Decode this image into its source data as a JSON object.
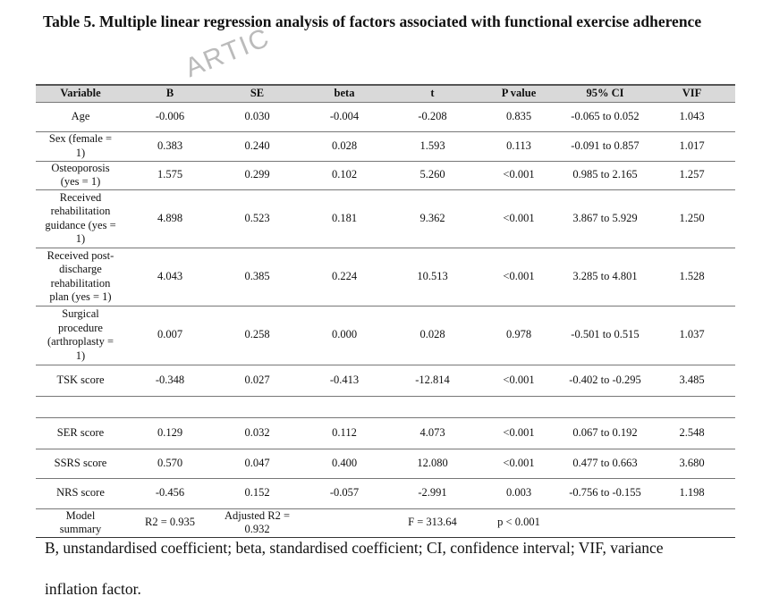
{
  "title": "Table 5. Multiple linear regression analysis of factors associated with functional exercise adherence",
  "watermark": "ARTIC",
  "table": {
    "header": [
      "Variable",
      "B",
      "SE",
      "beta",
      "t",
      "P value",
      "95% CI",
      "VIF"
    ],
    "rows": [
      [
        "Age",
        "-0.006",
        "0.030",
        "-0.004",
        "-0.208",
        "0.835",
        "-0.065 to 0.052",
        "1.043"
      ],
      [
        "Sex (female = 1)",
        "0.383",
        "0.240",
        "0.028",
        "1.593",
        "0.113",
        "-0.091 to 0.857",
        "1.017"
      ],
      [
        "Osteoporosis (yes = 1)",
        "1.575",
        "0.299",
        "0.102",
        "5.260",
        "<0.001",
        "0.985 to 2.165",
        "1.257"
      ],
      [
        "Received rehabilitation guidance (yes = 1)",
        "4.898",
        "0.523",
        "0.181",
        "9.362",
        "<0.001",
        "3.867 to 5.929",
        "1.250"
      ],
      [
        "Received post-discharge rehabilitation plan (yes = 1)",
        "4.043",
        "0.385",
        "0.224",
        "10.513",
        "<0.001",
        "3.285 to 4.801",
        "1.528"
      ],
      [
        "Surgical procedure (arthroplasty = 1)",
        "0.007",
        "0.258",
        "0.000",
        "0.028",
        "0.978",
        "-0.501 to 0.515",
        "1.037"
      ],
      [
        "TSK score",
        "-0.348",
        "0.027",
        "-0.413",
        "-12.814",
        "<0.001",
        "-0.402 to -0.295",
        "3.485"
      ],
      [
        "SER score",
        "0.129",
        "0.032",
        "0.112",
        "4.073",
        "<0.001",
        "0.067 to 0.192",
        "2.548"
      ],
      [
        "SSRS score",
        "0.570",
        "0.047",
        "0.400",
        "12.080",
        "<0.001",
        "0.477 to 0.663",
        "3.680"
      ],
      [
        "NRS score",
        "-0.456",
        "0.152",
        "-0.057",
        "-2.991",
        "0.003",
        "-0.756 to -0.155",
        "1.198"
      ]
    ],
    "model_summary": {
      "label": "Model summary",
      "r2": "R2 = 0.935",
      "adjusted_r2": "Adjusted R2 = 0.932",
      "f": "F = 313.64",
      "p": "p < 0.001"
    }
  },
  "footnote": "B, unstandardised coefficient; beta, standardised coefficient; CI, confidence interval; VIF, variance inflation factor."
}
